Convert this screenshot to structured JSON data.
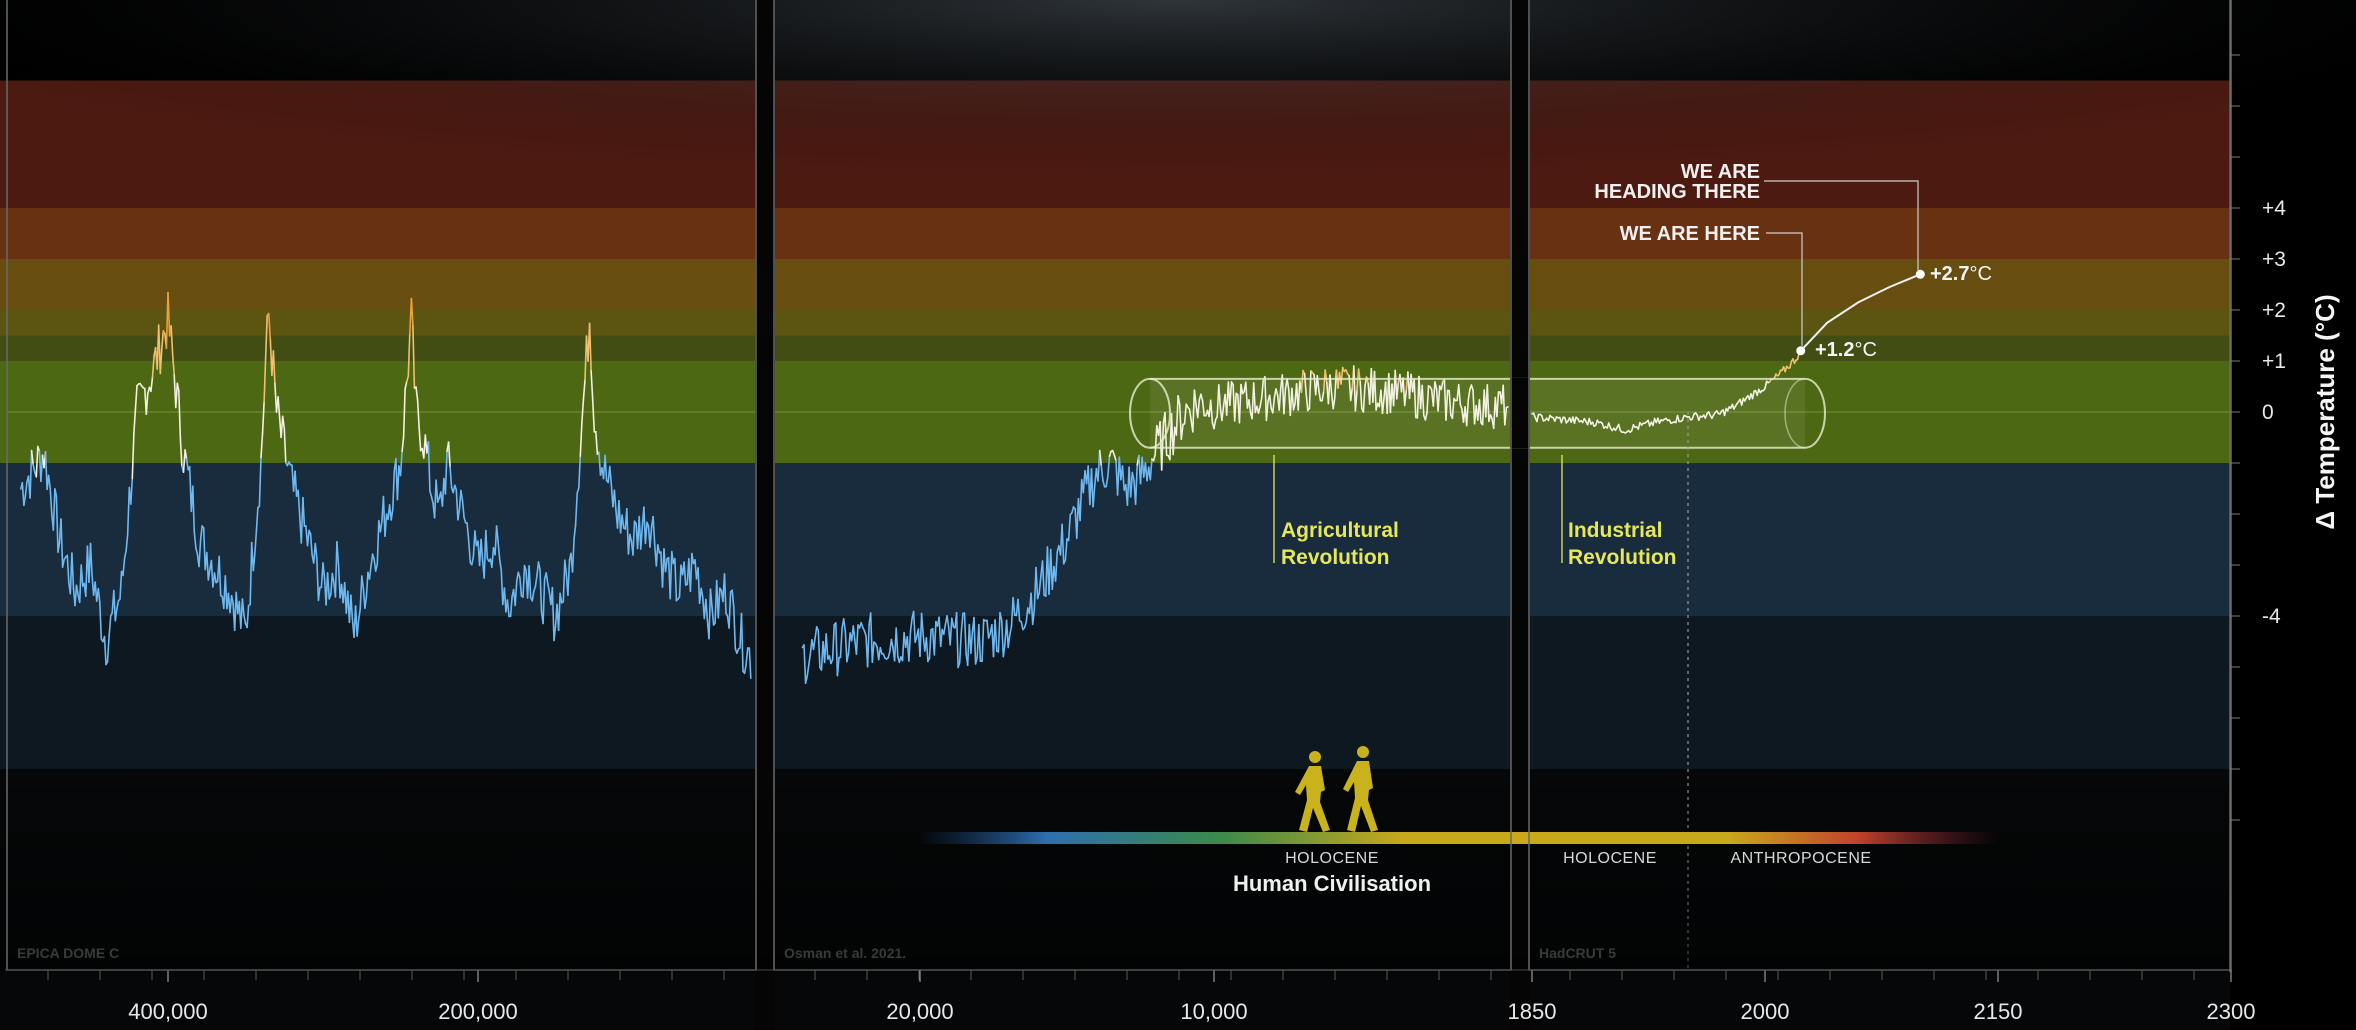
{
  "chart_data": {
    "type": "line",
    "ylabel": "Δ Temperature (°C)",
    "ylim": [
      -8,
      6.5
    ],
    "y_ticks": [
      {
        "v": 4,
        "label": "+4"
      },
      {
        "v": 3,
        "label": "+3"
      },
      {
        "v": 2,
        "label": "+2"
      },
      {
        "v": 1,
        "label": "+1"
      },
      {
        "v": 0,
        "label": "0"
      },
      {
        "v": -4,
        "label": "-4"
      }
    ],
    "bands": [
      {
        "from": 4,
        "to": 6.5,
        "color": "#5a1e14"
      },
      {
        "from": 3,
        "to": 4,
        "color": "#7a3a14"
      },
      {
        "from": 2,
        "to": 3,
        "color": "#7a5a14"
      },
      {
        "from": 1.5,
        "to": 2,
        "color": "#6b6414"
      },
      {
        "from": 1,
        "to": 1.5,
        "color": "#4e5a18"
      },
      {
        "from": -1,
        "to": 1,
        "color": "#5b7a16"
      },
      {
        "from": -4,
        "to": -1,
        "color": "#1c3448"
      },
      {
        "from": -7,
        "to": -4,
        "color": "#111c26"
      }
    ],
    "panels": [
      {
        "source": "EPICA DOME C",
        "x_ticks": [
          {
            "v": 400000,
            "label": "400,000"
          },
          {
            "v": 200000,
            "label": "200,000"
          }
        ],
        "series": [
          {
            "x": [
              495000,
              480000,
              470000,
              460000,
              450000,
              440000,
              430000,
              420000,
              410000,
              405000,
              400000,
              395000,
              390000,
              380000,
              370000,
              360000,
              350000,
              340000,
              337000,
              335000,
              330000,
              320000,
              310000,
              300000,
              290000,
              280000,
              270000,
              260000,
              250000,
              245000,
              243000,
              240000,
              235000,
              230000,
              225000,
              220000,
              210000,
              200000,
              190000,
              180000,
              170000,
              160000,
              150000,
              140000,
              135000,
              130000,
              128000,
              125000,
              120000,
              115000,
              110000,
              100000,
              90000,
              80000,
              70000,
              60000,
              50000,
              40000,
              30000,
              20000,
              12000
            ],
            "y": [
              -1.5,
              -0.8,
              -2.5,
              -3.5,
              -3.0,
              -4.5,
              -3.5,
              0.0,
              0.8,
              1.3,
              1.8,
              0.5,
              -0.8,
              -2.5,
              -3.0,
              -3.5,
              -4.3,
              -1.0,
              1.0,
              1.9,
              0.0,
              -1.5,
              -2.5,
              -3.5,
              -3.0,
              -4.3,
              -3.0,
              -2.0,
              -1.0,
              1.0,
              1.8,
              0.0,
              -0.5,
              -1.5,
              -2.0,
              -1.0,
              -2.0,
              -3.0,
              -2.5,
              -3.8,
              -3.0,
              -3.5,
              -4.0,
              -3.0,
              -1.0,
              1.0,
              1.9,
              0.0,
              -1.0,
              -1.5,
              -2.0,
              -2.5,
              -2.0,
              -3.0,
              -3.5,
              -3.0,
              -4.0,
              -3.5,
              -4.5,
              -5.0,
              -3.0
            ]
          }
        ]
      },
      {
        "source": "Osman et al. 2021.",
        "x_ticks": [
          {
            "v": 20000,
            "label": "20,000"
          },
          {
            "v": 10000,
            "label": "10,000"
          }
        ],
        "series": [
          {
            "x": [
              24000,
              22000,
              20000,
              18000,
              17000,
              16000,
              15000,
              14500,
              14000,
              13500,
              13000,
              12500,
              12000,
              11500,
              11000,
              10500,
              10000,
              8000,
              6000,
              4000,
              2000,
              0
            ],
            "y": [
              -4.8,
              -4.5,
              -4.4,
              -4.5,
              -4.2,
              -3.5,
              -2.5,
              -1.8,
              -1.2,
              -1.0,
              -1.5,
              -1.3,
              -0.8,
              -0.4,
              0.0,
              0.2,
              0.1,
              0.3,
              0.5,
              0.4,
              0.2,
              0.1
            ]
          }
        ]
      },
      {
        "source": "HadCRUT 5",
        "x_ticks": [
          {
            "v": 1850,
            "label": "1850"
          },
          {
            "v": 2000,
            "label": "2000"
          },
          {
            "v": 2150,
            "label": "2150"
          },
          {
            "v": 2300,
            "label": "2300"
          }
        ],
        "series": [
          {
            "x": [
              1850,
              1870,
              1890,
              1910,
              1930,
              1950,
              1970,
              1980,
              1990,
              2000,
              2010,
              2020,
              2023
            ],
            "y": [
              -0.1,
              -0.15,
              -0.2,
              -0.35,
              -0.2,
              -0.1,
              -0.05,
              0.1,
              0.3,
              0.5,
              0.75,
              1.05,
              1.2
            ]
          },
          {
            "x": [
              2023,
              2040,
              2060,
              2080,
              2100
            ],
            "y": [
              1.2,
              1.75,
              2.15,
              2.45,
              2.7
            ]
          }
        ]
      }
    ]
  },
  "annotations": {
    "here_label": "WE ARE HERE",
    "heading_line1": "WE ARE",
    "heading_line2": "HEADING THERE",
    "here_value_bold": "+1.2",
    "here_value_unit": "°C",
    "heading_value_bold": "+2.7",
    "heading_value_unit": "°C",
    "agri_line1": "Agricultural",
    "agri_line2": "Revolution",
    "indus_line1": "Industrial",
    "indus_line2": "Revolution"
  },
  "timeline": {
    "holocene1": "HOLOCENE",
    "holocene2": "HOLOCENE",
    "anthropocene": "ANTHROPOCENE",
    "civilisation": "Human Civilisation"
  },
  "colors": {
    "cold": "#6fb8f0",
    "neutral": "#f2f0e0",
    "warm": "#e8a23a",
    "hot": "#e0503a",
    "accent": "#e6e85a",
    "figure": "#c9b21c"
  }
}
